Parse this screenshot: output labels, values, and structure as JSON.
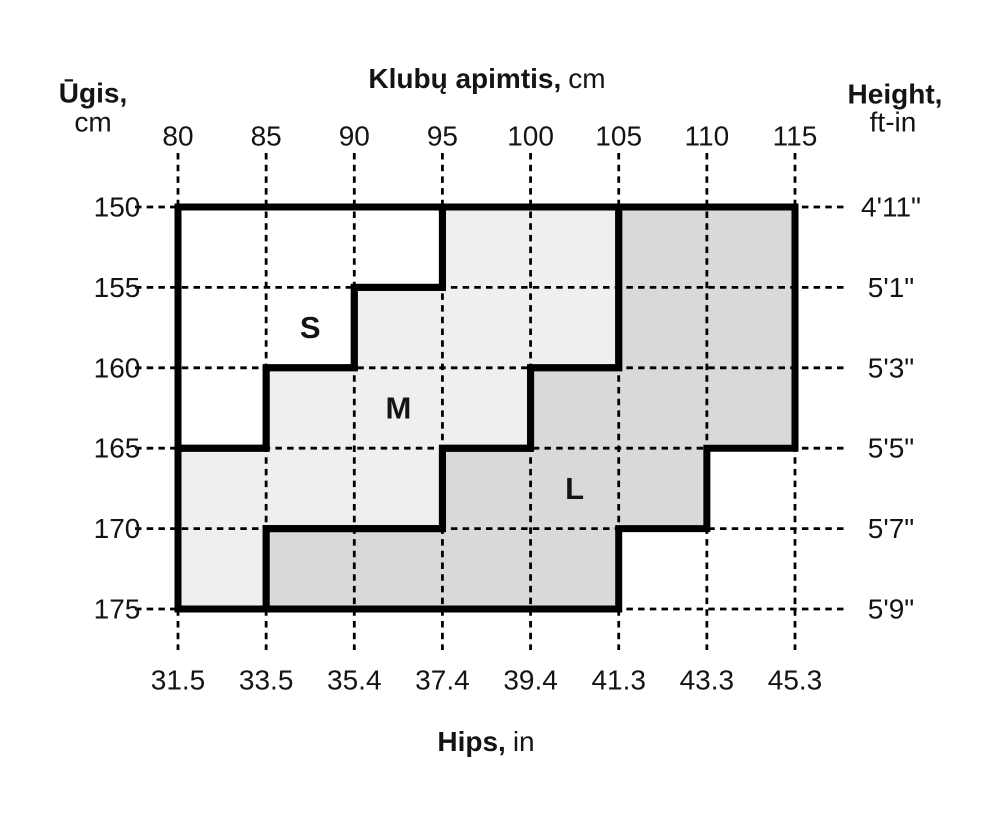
{
  "chart_data": {
    "type": "heatmap",
    "subtype": "stepped-size-region-chart",
    "title": "",
    "x_range_cm": [
      80,
      115
    ],
    "y_range_cm": [
      150,
      175
    ],
    "grid": {
      "style": "dashed",
      "on": true,
      "color": "#000000"
    },
    "axes": {
      "top": {
        "label_bold": "Klubų apimtis,",
        "label_unit": "cm",
        "values_cm": [
          80,
          85,
          90,
          95,
          100,
          105,
          110,
          115
        ],
        "ticks": [
          "80",
          "85",
          "90",
          "95",
          "100",
          "105",
          "110",
          "115"
        ]
      },
      "bottom": {
        "label_bold": "Hips,",
        "label_unit": "in",
        "ticks": [
          "31.5",
          "33.5",
          "35.4",
          "37.4",
          "39.4",
          "41.3",
          "43.3",
          "45.3"
        ]
      },
      "left": {
        "label_bold": "Ūgis,",
        "label_unit": "cm",
        "values_cm": [
          150,
          155,
          160,
          165,
          170,
          175
        ],
        "ticks": [
          "150",
          "155",
          "160",
          "165",
          "170",
          "175"
        ]
      },
      "right": {
        "label_bold": "Height,",
        "label_unit": "ft-in",
        "ticks": [
          "4'11\"",
          "5'1\"",
          "5'3\"",
          "5'5\"",
          "5'7\"",
          "5'9\""
        ]
      }
    },
    "regions": [
      {
        "label": "S",
        "fill": "#ffffff",
        "label_at_cm": [
          87.5,
          157.5
        ],
        "polygon_cm": [
          [
            80,
            150
          ],
          [
            95,
            150
          ],
          [
            95,
            155
          ],
          [
            90,
            155
          ],
          [
            90,
            160
          ],
          [
            85,
            160
          ],
          [
            85,
            165
          ],
          [
            80,
            165
          ]
        ]
      },
      {
        "label": "M",
        "fill": "#efefef",
        "label_at_cm": [
          92.5,
          162.5
        ],
        "polygon_cm": [
          [
            95,
            150
          ],
          [
            105,
            150
          ],
          [
            105,
            160
          ],
          [
            100,
            160
          ],
          [
            100,
            165
          ],
          [
            95,
            165
          ],
          [
            95,
            170
          ],
          [
            85,
            170
          ],
          [
            85,
            175
          ],
          [
            80,
            175
          ],
          [
            80,
            165
          ],
          [
            85,
            165
          ],
          [
            85,
            160
          ],
          [
            90,
            160
          ],
          [
            90,
            155
          ],
          [
            95,
            155
          ]
        ]
      },
      {
        "label": "L",
        "fill": "#d9d9d9",
        "label_at_cm": [
          102.5,
          167.5
        ],
        "polygon_cm": [
          [
            105,
            150
          ],
          [
            115,
            150
          ],
          [
            115,
            165
          ],
          [
            110,
            165
          ],
          [
            110,
            170
          ],
          [
            105,
            170
          ],
          [
            105,
            175
          ],
          [
            85,
            175
          ],
          [
            85,
            170
          ],
          [
            95,
            170
          ],
          [
            95,
            165
          ],
          [
            100,
            165
          ],
          [
            100,
            160
          ],
          [
            105,
            160
          ]
        ]
      }
    ],
    "colors": {
      "outline": "#000000",
      "text": "#141414"
    }
  }
}
